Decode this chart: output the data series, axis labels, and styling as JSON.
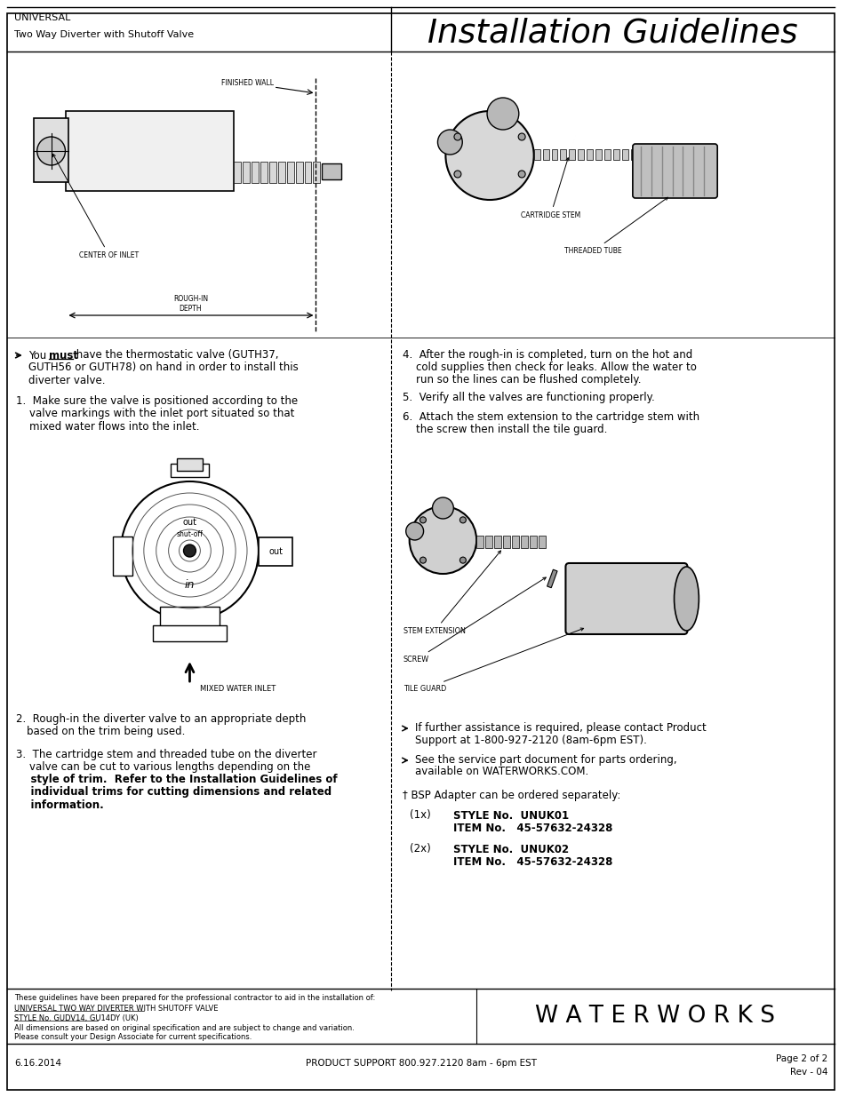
{
  "title": "Installation Guidelines",
  "subtitle_line1": "UNIVERSAL",
  "subtitle_line2": "Two Way Diverter with Shutoff Valve",
  "bg_color": "#ffffff",
  "border_color": "#000000",
  "text_color": "#231f20",
  "footer_waterworks": "W A T E R W O R K S",
  "footer_date": "6.16.2014",
  "footer_support": "PRODUCT SUPPORT 800.927.2120 8am - 6pm EST",
  "bsp_text": "† BSP Adapter can be ordered separately:",
  "item1_qty": "(1x)",
  "item1_style": "STYLE No.  UNUK01",
  "item1_item": "ITEM No.   45-57632-24328",
  "item2_qty": "(2x)",
  "item2_style": "STYLE No.  UNUK02",
  "item2_item": "ITEM No.   45-57632-24328",
  "label_finished_wall": "FINISHED WALL",
  "label_center_of_inlet": "CENTER OF INLET",
  "label_rough_in_depth": "ROUGH-IN\nDEPTH",
  "label_cartridge_stem": "CARTRIDGE STEM",
  "label_threaded_tube": "THREADED TUBE",
  "label_mixed_water_inlet": "MIXED WATER INLET",
  "label_stem_extension": "STEM EXTENSION",
  "label_screw": "SCREW",
  "label_tile_guard": "TILE GUARD"
}
